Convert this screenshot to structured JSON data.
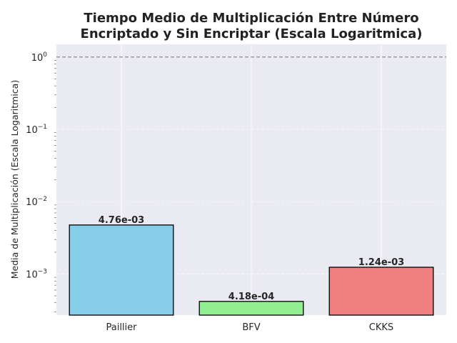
{
  "chart_data": {
    "type": "bar",
    "title_lines": [
      "Tiempo Medio de Multiplicación Entre Número",
      "Encriptado y Sin Encriptar (Escala Logaritmica)"
    ],
    "xlabel": "",
    "ylabel": "Media de Multiplicación (Escala Logaritmica)",
    "yscale": "log",
    "ylim": [
      0.00027,
      1.5
    ],
    "yticks": [
      {
        "value": 0.001,
        "mantissa": "10",
        "exp": "−3"
      },
      {
        "value": 0.01,
        "mantissa": "10",
        "exp": "−2"
      },
      {
        "value": 0.1,
        "mantissa": "10",
        "exp": "−1"
      },
      {
        "value": 1,
        "mantissa": "10",
        "exp": "0"
      }
    ],
    "categories": [
      "Paillier",
      "BFV",
      "CKKS"
    ],
    "values": [
      0.00476,
      0.000418,
      0.00124
    ],
    "value_labels": [
      "4.76e-03",
      "4.18e-04",
      "1.24e-03"
    ],
    "colors": [
      "#87ceeb",
      "#90ee90",
      "#f08080"
    ],
    "reference_line": {
      "value": 1,
      "style": "dashed",
      "color": "#808080"
    },
    "grid": true,
    "background": "#eaeaf2"
  }
}
